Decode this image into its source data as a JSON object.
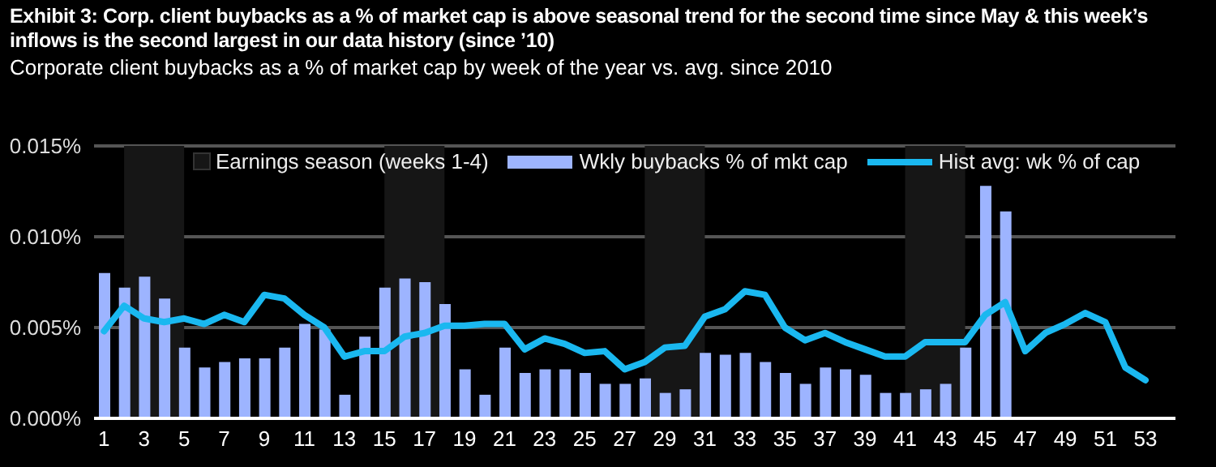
{
  "chart_data": {
    "type": "bar",
    "title": "Exhibit 3: Corp. client buybacks as a % of market cap is above seasonal trend for the second time since May & this week’s inflows is the second largest in our data history (since ’10)",
    "subtitle": "Corporate client buybacks as a % of market cap by week of the year vs. avg. since 2010",
    "x": [
      1,
      2,
      3,
      4,
      5,
      6,
      7,
      8,
      9,
      10,
      11,
      12,
      13,
      14,
      15,
      16,
      17,
      18,
      19,
      20,
      21,
      22,
      23,
      24,
      25,
      26,
      27,
      28,
      29,
      30,
      31,
      32,
      33,
      34,
      35,
      36,
      37,
      38,
      39,
      40,
      41,
      42,
      43,
      44,
      45,
      46,
      47,
      48,
      49,
      50,
      51,
      52,
      53
    ],
    "series": [
      {
        "name": "Wkly buybacks % of mkt cap",
        "color": "#9db4ff",
        "values": [
          0.008,
          0.0072,
          0.0078,
          0.0066,
          0.0039,
          0.0028,
          0.0031,
          0.0033,
          0.0033,
          0.0039,
          0.0052,
          0.0049,
          0.0013,
          0.0045,
          0.0072,
          0.0077,
          0.0075,
          0.0063,
          0.0027,
          0.0013,
          0.0039,
          0.0025,
          0.0027,
          0.0027,
          0.0025,
          0.0019,
          0.0019,
          0.0022,
          0.0014,
          0.0016,
          0.0036,
          0.0035,
          0.0036,
          0.0031,
          0.0025,
          0.0019,
          0.0028,
          0.0027,
          0.0024,
          0.0014,
          0.0014,
          0.0016,
          0.0019,
          0.0039,
          0.0128,
          0.0114,
          null,
          null,
          null,
          null,
          null,
          null,
          null
        ]
      },
      {
        "name": "Hist avg: wk % of cap",
        "type": "line",
        "color": "#1ab8f0",
        "values": [
          0.0048,
          0.0062,
          0.0055,
          0.0053,
          0.0055,
          0.0052,
          0.0057,
          0.0053,
          0.0068,
          0.0066,
          0.0057,
          0.005,
          0.0034,
          0.0037,
          0.0037,
          0.0045,
          0.0047,
          0.0051,
          0.0051,
          0.0052,
          0.0052,
          0.0038,
          0.0044,
          0.0041,
          0.0036,
          0.0037,
          0.0027,
          0.0031,
          0.0039,
          0.004,
          0.0056,
          0.006,
          0.007,
          0.0068,
          0.005,
          0.0043,
          0.0047,
          0.0042,
          0.0038,
          0.0034,
          0.0034,
          0.0042,
          0.0042,
          0.0042,
          0.0057,
          0.0064,
          0.0037,
          0.0047,
          0.0052,
          0.0058,
          0.0053,
          0.0028,
          0.0021
        ]
      }
    ],
    "xlim": [
      0.5,
      54.5
    ],
    "xticks": [
      1,
      3,
      5,
      7,
      9,
      11,
      13,
      15,
      17,
      19,
      21,
      23,
      25,
      27,
      29,
      31,
      33,
      35,
      37,
      39,
      41,
      43,
      45,
      47,
      49,
      51,
      53
    ],
    "ylim": [
      0,
      0.015
    ],
    "yticks": [
      {
        "value": 0,
        "label": "0.000%"
      },
      {
        "value": 0.005,
        "label": "0.005%"
      },
      {
        "value": 0.01,
        "label": "0.010%"
      },
      {
        "value": 0.015,
        "label": "0.015%"
      }
    ],
    "bands": [
      {
        "axis": "x",
        "from": 2,
        "to": 5,
        "color": "#161616",
        "label": "Earnings season (weeks 1-4)"
      },
      {
        "axis": "x",
        "from": 15,
        "to": 18,
        "color": "#161616"
      },
      {
        "axis": "x",
        "from": 28,
        "to": 31,
        "color": "#161616"
      },
      {
        "axis": "x",
        "from": 41,
        "to": 44,
        "color": "#161616"
      }
    ],
    "grid": "y",
    "legend": "top",
    "marker": "none",
    "line_style": "solid"
  }
}
